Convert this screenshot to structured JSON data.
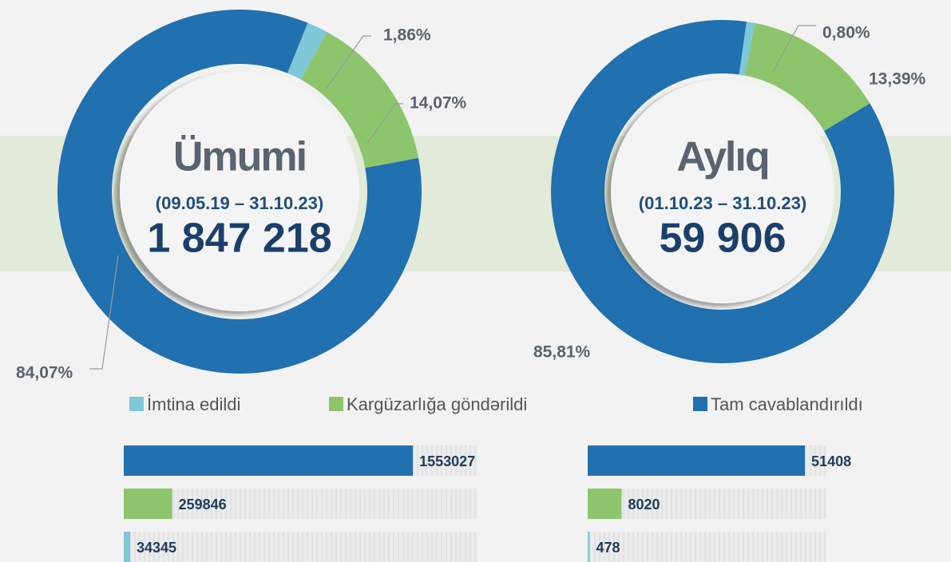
{
  "chart_data": [
    {
      "type": "donut",
      "title": "Ümumi",
      "subtitle": "(09.05.19 – 31.10.23)",
      "total": "1 847 218",
      "categories": [
        "İmtina edildi",
        "Kargüzarlığa göndərildi",
        "Tam cavablandırıldı"
      ],
      "values": [
        1.86,
        14.07,
        84.07
      ],
      "value_labels": [
        "1,86%",
        "14,07%",
        "84,07%"
      ],
      "colors": [
        "#7ec8d8",
        "#8dc56c",
        "#2170b0"
      ]
    },
    {
      "type": "donut",
      "title": "Aylıq",
      "subtitle": "(01.10.23 – 31.10.23)",
      "total": "59 906",
      "values": [
        0.8,
        13.39,
        85.81
      ],
      "value_labels": [
        "0,80%",
        "13,39%",
        "85,81%"
      ],
      "colors": [
        "#7ec8d8",
        "#8dc56c",
        "#2170b0"
      ]
    },
    {
      "type": "hbar",
      "values": [
        1553027,
        259846,
        34345
      ],
      "colors": [
        "#2170b0",
        "#8dc56c",
        "#7ec8d8"
      ],
      "xlim": [
        0,
        1900000
      ]
    },
    {
      "type": "hbar",
      "values": [
        51408,
        8020,
        478
      ],
      "colors": [
        "#2170b0",
        "#8dc56c",
        "#7ec8d8"
      ],
      "xlim": [
        0,
        56500
      ]
    }
  ]
}
